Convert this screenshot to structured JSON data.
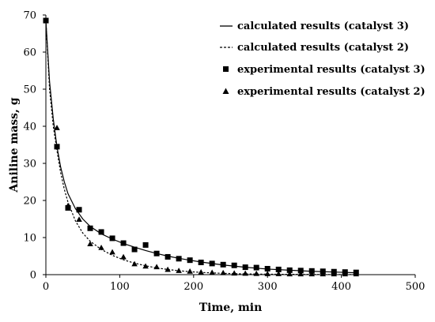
{
  "chart_data": {
    "type": "scatter",
    "title": "",
    "xlabel": "Time, min",
    "ylabel": "Aniline mass, g",
    "xlim": [
      0,
      500
    ],
    "ylim": [
      0,
      70
    ],
    "x_ticks": [
      0,
      100,
      200,
      300,
      400,
      500
    ],
    "y_ticks": [
      0,
      10,
      20,
      30,
      40,
      50,
      60,
      70
    ],
    "grid": false,
    "legend_position": "top-right",
    "series": [
      {
        "name": "calculated results (catalyst 3)",
        "kind": "line",
        "style": "solid",
        "x": [
          0,
          5,
          10,
          15,
          20,
          25,
          30,
          40,
          50,
          60,
          75,
          90,
          105,
          120,
          135,
          150,
          165,
          180,
          195,
          210,
          240,
          270,
          300,
          330,
          360,
          390,
          420
        ],
        "y": [
          68.5,
          52,
          42,
          34.5,
          29,
          25,
          21.8,
          17.8,
          15,
          13,
          11,
          9.6,
          8.4,
          7.4,
          6.5,
          5.7,
          5,
          4.4,
          3.9,
          3.4,
          2.6,
          2,
          1.5,
          1.2,
          0.9,
          0.7,
          0.5
        ]
      },
      {
        "name": "calculated results (catalyst 2)",
        "kind": "line",
        "style": "dashed",
        "x": [
          0,
          5,
          10,
          15,
          20,
          25,
          30,
          40,
          50,
          60,
          75,
          90,
          105,
          120,
          135,
          150,
          165,
          180,
          195,
          210,
          240,
          270,
          300,
          330,
          360,
          390,
          420
        ],
        "y": [
          68.5,
          50,
          40,
          33.5,
          27.5,
          23,
          19.5,
          14.5,
          11.2,
          9,
          6.8,
          5.2,
          4,
          3.1,
          2.4,
          1.8,
          1.4,
          1.05,
          0.8,
          0.6,
          0.35,
          0.2,
          0.12,
          0.08,
          0.05,
          0.03,
          0.02
        ]
      },
      {
        "name": "experimental results (catalyst 3)",
        "kind": "marker",
        "marker": "square",
        "x": [
          0,
          15,
          30,
          45,
          60,
          75,
          90,
          105,
          120,
          135,
          150,
          165,
          180,
          195,
          210,
          225,
          240,
          255,
          270,
          285,
          300,
          315,
          330,
          345,
          360,
          375,
          390,
          405,
          420
        ],
        "y": [
          68.5,
          34.5,
          18,
          17.5,
          12.5,
          11.5,
          9.8,
          8.5,
          6.8,
          8,
          5.7,
          4.8,
          4.3,
          3.9,
          3.3,
          3,
          2.7,
          2.5,
          2,
          1.9,
          1.6,
          1.4,
          1.2,
          1.1,
          1,
          0.9,
          0.8,
          0.7,
          0.6
        ]
      },
      {
        "name": "experimental results (catalyst 2)",
        "kind": "marker",
        "marker": "triangle",
        "x": [
          15,
          30,
          45,
          60,
          75,
          90,
          105,
          120,
          135,
          150,
          165,
          180,
          195,
          210,
          225,
          240,
          255,
          270,
          285,
          300,
          315,
          330,
          345,
          360,
          375,
          390,
          405,
          420
        ],
        "y": [
          39.5,
          18.5,
          14.8,
          8.2,
          7.2,
          6,
          4.7,
          2.8,
          2.2,
          2,
          1.3,
          1,
          0.8,
          0.6,
          0.5,
          0.4,
          0.3,
          0.25,
          0.2,
          0.15,
          0.15,
          0.1,
          0.1,
          0.1,
          0.1,
          0.1,
          0.1,
          0.1
        ]
      }
    ]
  }
}
